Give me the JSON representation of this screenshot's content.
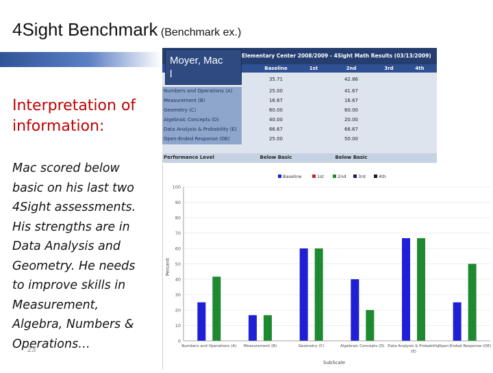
{
  "slide": {
    "title": "4Sight Benchmark",
    "subtitle": "(Benchmark ex.)",
    "heading_line1": "Interpretation of",
    "heading_line2": "information:",
    "body_lines": [
      "Mac scored below",
      "basic on his last two",
      "4Sight assessments.",
      "His strengths are in",
      "Data Analysis and",
      "Geometry.  He needs",
      "to improve skills in",
      "Measurement,",
      "Algebra, Numbers &",
      "Operations…"
    ],
    "slide_number": "23",
    "name_line1": "Moyer, Mac",
    "name_line2": "l"
  },
  "results_table": {
    "title": "Elementary Center 2008/2009 - 4Sight Math Results (03/13/2009)",
    "columns": [
      "Baseline",
      "1st",
      "2nd",
      "3rd",
      "4th"
    ],
    "overall": [
      "35.71",
      "",
      "42.86",
      "",
      ""
    ],
    "rows": [
      {
        "label": "Numbers and Operations (A)",
        "values": [
          "25.00",
          "",
          "41.67",
          "",
          ""
        ]
      },
      {
        "label": "Measurement (B)",
        "values": [
          "16.67",
          "",
          "16.67",
          "",
          ""
        ]
      },
      {
        "label": "Geometry (C)",
        "values": [
          "60.00",
          "",
          "60.00",
          "",
          ""
        ]
      },
      {
        "label": "Algebraic Concepts (D)",
        "values": [
          "40.00",
          "",
          "20.00",
          "",
          ""
        ]
      },
      {
        "label": "Data Analysis & Probability (E)",
        "values": [
          "66.67",
          "",
          "66.67",
          "",
          ""
        ]
      },
      {
        "label": "Open-Ended Response (OE)",
        "values": [
          "25.00",
          "",
          "50.00",
          "",
          ""
        ]
      }
    ],
    "performance": {
      "label": "Performance Level",
      "values": [
        "Below Basic",
        "",
        "Below Basic",
        "",
        ""
      ]
    }
  },
  "chart_data": {
    "type": "bar",
    "categories": [
      "Numbers and Operations (A)",
      "Measurement (B)",
      "Geometry (C)",
      "Algebraic Concepts (D)",
      "Data Analysis & Probability (E)",
      "Open-Ended Response (OE)"
    ],
    "series": [
      {
        "name": "Baseline",
        "color": "#1f1fd6",
        "values": [
          25,
          16.67,
          60,
          40,
          66.67,
          25
        ]
      },
      {
        "name": "1st",
        "color": "#c0272d",
        "values": [
          null,
          null,
          null,
          null,
          null,
          null
        ]
      },
      {
        "name": "2nd",
        "color": "#1e8a30",
        "values": [
          41.67,
          16.67,
          60,
          20,
          66.67,
          50
        ]
      },
      {
        "name": "3rd",
        "color": "#1a1a5e",
        "values": [
          null,
          null,
          null,
          null,
          null,
          null
        ]
      },
      {
        "name": "4th",
        "color": "#1a1a1a",
        "values": [
          null,
          null,
          null,
          null,
          null,
          null
        ]
      }
    ],
    "ylabel": "Percent",
    "xlabel": "SubScale",
    "ylim": [
      0,
      100
    ],
    "yticks": [
      0,
      10,
      20,
      30,
      40,
      50,
      60,
      70,
      80,
      90,
      100
    ],
    "grid": true,
    "legend_position": "top"
  }
}
